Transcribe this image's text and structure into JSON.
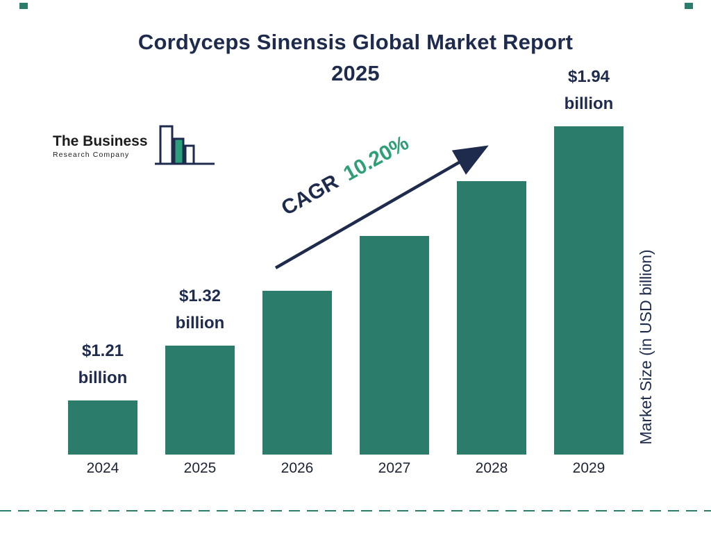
{
  "title": {
    "line1": "Cordyceps Sinensis Global Market Report",
    "line2": "2025"
  },
  "logo": {
    "name_line1": "The Business",
    "name_line2": "Research Company"
  },
  "cagr": {
    "label": "CAGR",
    "value": "10.20%"
  },
  "right_axis_label": "Market Size (in USD billion)",
  "chart_data": {
    "type": "bar",
    "title": "Cordyceps Sinensis Global Market Report 2025",
    "ylabel": "Market Size (in USD billion)",
    "cagr_percent": "10.20%",
    "categories": [
      "2024",
      "2025",
      "2026",
      "2027",
      "2028",
      "2029"
    ],
    "values": [
      1.21,
      1.32,
      1.45,
      1.6,
      1.76,
      1.94
    ],
    "series": [
      {
        "year": "2024",
        "value": 1.21,
        "label_amount": "$1.21",
        "label_unit": "billion"
      },
      {
        "year": "2025",
        "value": 1.32,
        "label_amount": "$1.32",
        "label_unit": "billion"
      },
      {
        "year": "2026",
        "value": 1.45
      },
      {
        "year": "2027",
        "value": 1.6
      },
      {
        "year": "2028",
        "value": 1.76
      },
      {
        "year": "2029",
        "value": 1.94,
        "label_amount": "$1.94",
        "label_unit": "billion"
      }
    ],
    "legend": "none",
    "grid": "off"
  },
  "colors": {
    "bar": "#2b7c6b",
    "navy": "#1e2b4d",
    "teal_text": "#2f9e79"
  }
}
